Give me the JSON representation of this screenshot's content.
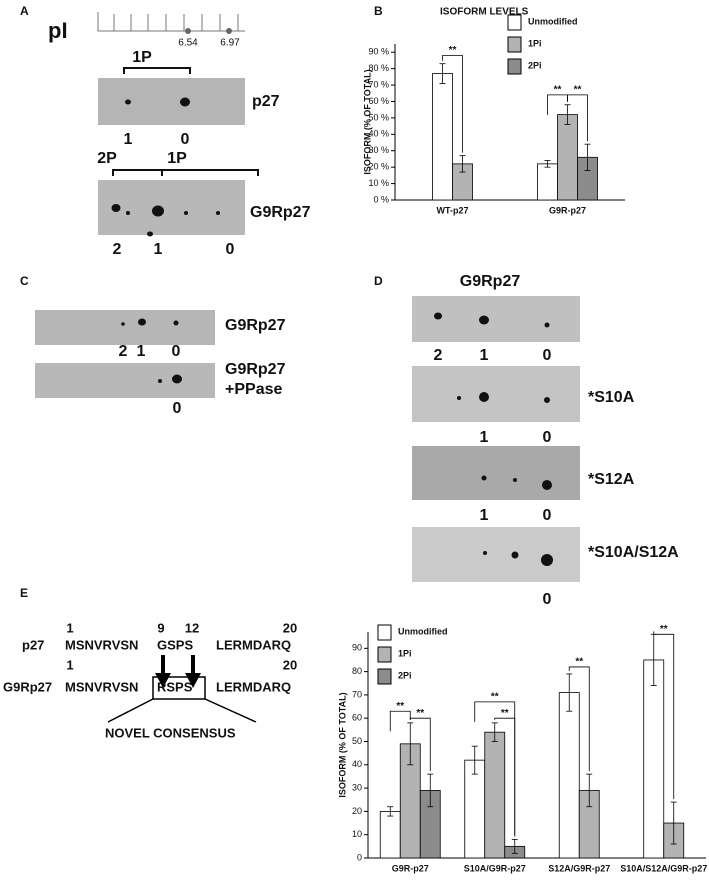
{
  "panels": {
    "A": {
      "letter": "A",
      "scale_label": "pI",
      "scale_values": [
        "6.54",
        "6.97"
      ],
      "p27": {
        "bracket": "1P",
        "label": "p27",
        "spots": [
          "1",
          "0"
        ]
      },
      "G9Rp27": {
        "brackets": [
          "2P",
          "1P"
        ],
        "label": "G9Rp27",
        "spots": [
          "2",
          "1",
          "0"
        ]
      }
    },
    "B": {
      "letter": "B"
    },
    "C": {
      "letter": "C",
      "blots": [
        {
          "label": [
            "G9Rp27"
          ],
          "spots": [
            "2",
            "1",
            "0"
          ]
        },
        {
          "label": [
            "G9Rp27",
            "+PPase"
          ],
          "spots": [
            "0"
          ]
        }
      ]
    },
    "D": {
      "letter": "D",
      "title": "G9Rp27",
      "blots": [
        {
          "spots": [
            "2",
            "1",
            "0"
          ]
        },
        {
          "label": "*S10A",
          "spots": [
            "1",
            "0"
          ]
        },
        {
          "label": "*S12A",
          "spots": [
            "1",
            "0"
          ]
        },
        {
          "label": "*S10A/S12A",
          "spots": [
            "0"
          ]
        }
      ]
    },
    "E": {
      "letter": "E",
      "rows": [
        {
          "positions": [
            "1",
            "9",
            "12",
            "20"
          ],
          "name": "p27",
          "segments": [
            "MSNVRVSN",
            "GSPS",
            "LERMDARQ"
          ]
        },
        {
          "positions": [
            "1",
            "20"
          ],
          "name": "G9Rp27",
          "segments": [
            "MSNVRVSN",
            "RSPS",
            "LERMDARQ"
          ]
        }
      ],
      "box_label": "NOVEL CONSENSUS"
    }
  },
  "chart_data": [
    {
      "type": "bar",
      "title": "ISOFORM LEVELS",
      "y_label": "ISOFORM (% OF TOTAL)",
      "categories": [
        "WT-p27",
        "G9R-p27"
      ],
      "series": [
        {
          "name": "Unmodified",
          "color": "#ffffff",
          "values": [
            77,
            22
          ],
          "errors": [
            6,
            2
          ]
        },
        {
          "name": "1Pi",
          "color": "#b3b3b3",
          "values": [
            22,
            52
          ],
          "errors": [
            5,
            6
          ]
        },
        {
          "name": "2Pi",
          "color": "#8c8c8c",
          "values": [
            null,
            26
          ],
          "errors": [
            null,
            8
          ]
        }
      ],
      "ylim": [
        0,
        95
      ],
      "yticks": [
        {
          "value": 0,
          "label": "0 %"
        },
        {
          "value": 10,
          "label": "10 %"
        },
        {
          "value": 20,
          "label": "20 %"
        },
        {
          "value": 30,
          "label": "30 %"
        },
        {
          "value": 40,
          "label": "40 %"
        },
        {
          "value": 50,
          "label": "50 %"
        },
        {
          "value": 60,
          "label": "60 %"
        },
        {
          "value": 70,
          "label": "70 %"
        },
        {
          "value": 80,
          "label": "80 %"
        },
        {
          "value": 90,
          "label": "90 %"
        }
      ],
      "annotations": [
        "**",
        "**",
        "**"
      ]
    },
    {
      "type": "bar",
      "y_label": "ISOFORM (% OF TOTAL)",
      "categories": [
        "G9R-p27",
        "S10A/G9R-p27",
        "S12A/G9R-p27",
        "S10A/S12A/G9R-p27"
      ],
      "series": [
        {
          "name": "Unmodified",
          "color": "#ffffff",
          "values": [
            20,
            42,
            71,
            85
          ],
          "errors": [
            2,
            6,
            8,
            11
          ]
        },
        {
          "name": "1Pi",
          "color": "#b3b3b3",
          "values": [
            49,
            54,
            29,
            15
          ],
          "errors": [
            9,
            4,
            7,
            9
          ]
        },
        {
          "name": "2Pi",
          "color": "#8c8c8c",
          "values": [
            29,
            5,
            null,
            null
          ],
          "errors": [
            7,
            3,
            null,
            null
          ]
        }
      ],
      "ylim": [
        0,
        97
      ],
      "yticks": [
        0,
        10,
        20,
        30,
        40,
        50,
        60,
        70,
        80,
        90
      ],
      "annotations": [
        "**",
        "**",
        "**",
        "**",
        "**",
        "**"
      ]
    }
  ]
}
